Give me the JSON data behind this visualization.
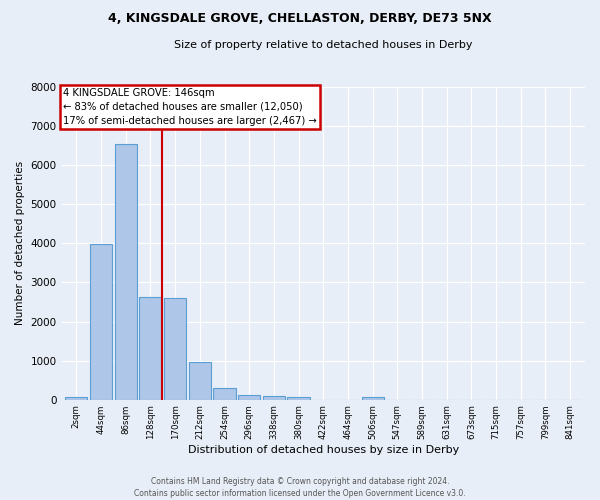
{
  "title": "4, KINGSDALE GROVE, CHELLASTON, DERBY, DE73 5NX",
  "subtitle": "Size of property relative to detached houses in Derby",
  "xlabel": "Distribution of detached houses by size in Derby",
  "ylabel": "Number of detached properties",
  "footnote": "Contains HM Land Registry data © Crown copyright and database right 2024.\nContains public sector information licensed under the Open Government Licence v3.0.",
  "bin_labels": [
    "2sqm",
    "44sqm",
    "86sqm",
    "128sqm",
    "170sqm",
    "212sqm",
    "254sqm",
    "296sqm",
    "338sqm",
    "380sqm",
    "422sqm",
    "464sqm",
    "506sqm",
    "547sqm",
    "589sqm",
    "631sqm",
    "673sqm",
    "715sqm",
    "757sqm",
    "799sqm",
    "841sqm"
  ],
  "bar_heights": [
    75,
    3980,
    6530,
    2620,
    2610,
    960,
    310,
    120,
    95,
    60,
    0,
    0,
    60,
    0,
    0,
    0,
    0,
    0,
    0,
    0,
    0
  ],
  "bar_color": "#aec6e8",
  "bar_edge_color": "#5a9fd4",
  "background_color": "#e8eef7",
  "grid_color": "#ffffff",
  "red_line_x": 3.45,
  "annotation_text": "4 KINGSDALE GROVE: 146sqm\n← 83% of detached houses are smaller (12,050)\n17% of semi-detached houses are larger (2,467) →",
  "annotation_box_color": "#ffffff",
  "annotation_border_color": "#cc0000",
  "ylim": [
    0,
    8000
  ],
  "yticks": [
    0,
    1000,
    2000,
    3000,
    4000,
    5000,
    6000,
    7000,
    8000
  ]
}
